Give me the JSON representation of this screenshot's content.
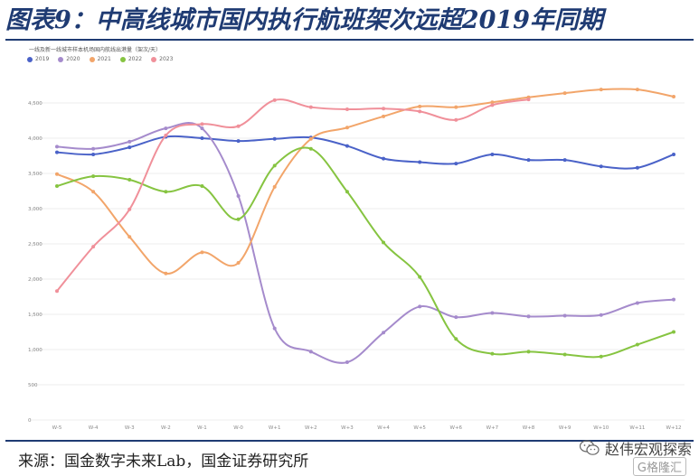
{
  "page": {
    "title": "图表9：中高线城市国内执行航班架次远超2019年同期",
    "source": "来源：国金数字未来Lab，国金证券研究所",
    "brand": "赵伟宏观探索",
    "brand_sub": "G格隆汇"
  },
  "colors": {
    "title": "#1f3b73",
    "grid": "#e6e6e6"
  },
  "chart_data": {
    "type": "line",
    "title": "一线及新一线城市样本机场国内航线出港量（架次/天）",
    "categories": [
      "W-5",
      "W-4",
      "W-3",
      "W-2",
      "W-1",
      "W-0",
      "W+1",
      "W+2",
      "W+3",
      "W+4",
      "W+5",
      "W+6",
      "W+7",
      "W+8",
      "W+9",
      "W+10",
      "W+11",
      "W+12"
    ],
    "ylim": [
      0,
      5000
    ],
    "yticks": [
      0,
      500,
      1000,
      1500,
      2000,
      2500,
      3000,
      3500,
      4000,
      4500
    ],
    "ytick_labels": [
      "0",
      "500",
      "1,000",
      "1,500",
      "2,000",
      "2,500",
      "3,000",
      "3,500",
      "4,000",
      "4,500"
    ],
    "grid": true,
    "legend_position": "top-left",
    "series": [
      {
        "name": "2019",
        "color": "#4a62c8",
        "values": [
          3800,
          3770,
          3870,
          4020,
          4000,
          3960,
          3990,
          4010,
          3890,
          3710,
          3660,
          3640,
          3770,
          3690,
          3690,
          3600,
          3580,
          3770
        ]
      },
      {
        "name": "2020",
        "color": "#a58bcc",
        "values": [
          3880,
          3850,
          3950,
          4140,
          4140,
          3180,
          1300,
          970,
          820,
          1240,
          1610,
          1460,
          1520,
          1470,
          1480,
          1490,
          1660,
          1710
        ]
      },
      {
        "name": "2021",
        "color": "#f2a56a",
        "values": [
          3490,
          3240,
          2600,
          2080,
          2380,
          2230,
          3310,
          3990,
          4150,
          4310,
          4450,
          4440,
          4510,
          4580,
          4640,
          4690,
          4690,
          4590
        ]
      },
      {
        "name": "2022",
        "color": "#86c441",
        "values": [
          3320,
          3460,
          3410,
          3240,
          3320,
          2850,
          3610,
          3850,
          3240,
          2520,
          2030,
          1150,
          940,
          970,
          930,
          900,
          1070,
          1250
        ]
      },
      {
        "name": "2023",
        "color": "#f0909a",
        "values": [
          1830,
          2460,
          2990,
          4040,
          4200,
          4170,
          4540,
          4440,
          4410,
          4420,
          4380,
          4260,
          4470,
          4550,
          null,
          null,
          null,
          null
        ]
      }
    ]
  }
}
